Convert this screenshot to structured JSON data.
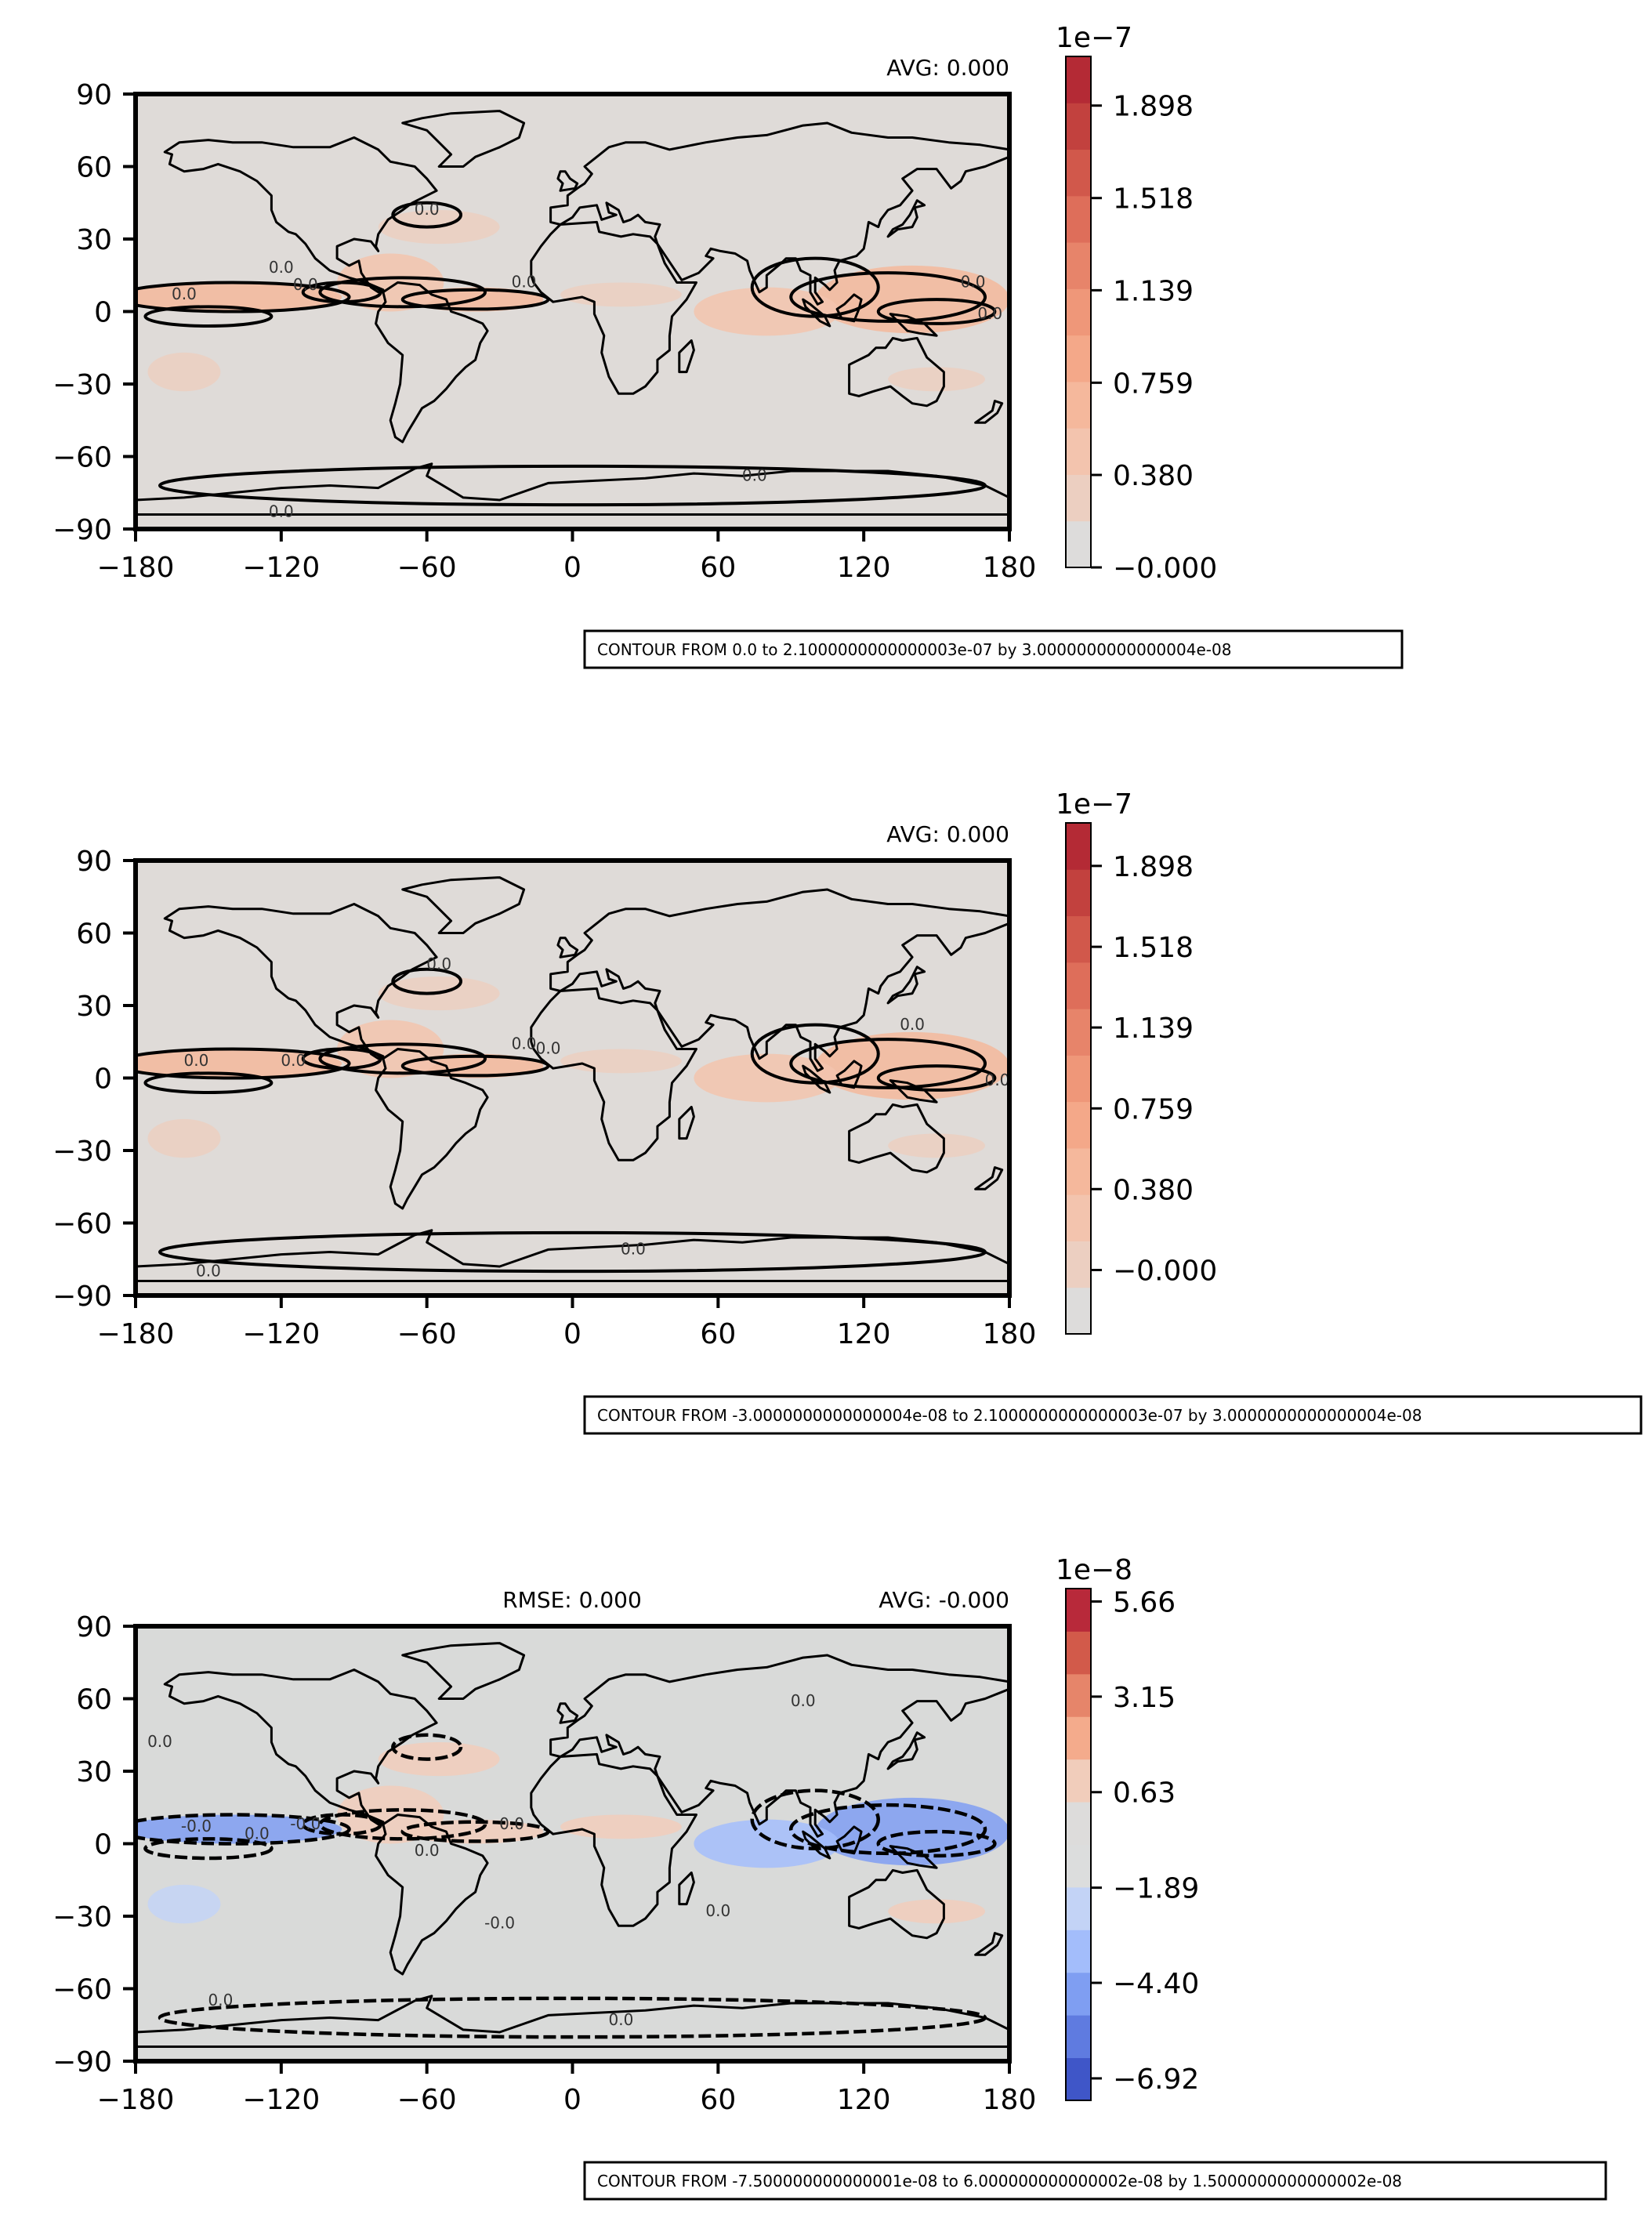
{
  "chart_data": [
    {
      "type": "heatmap",
      "panel": "top",
      "annotations": {
        "rmse": "",
        "avg": "AVG: 0.000"
      },
      "xticks": [
        "−180",
        "−120",
        "−60",
        "0",
        "60",
        "120",
        "180"
      ],
      "yticks": [
        "90",
        "60",
        "30",
        "0",
        "−30",
        "−60",
        "−90"
      ],
      "xlim": [
        -180,
        180
      ],
      "ylim": [
        -90,
        90
      ],
      "colorbar": {
        "exponent": "1e−7",
        "range": [
          0,
          2.1e-07
        ],
        "ticks": [
          "−0.000",
          "0.380",
          "0.759",
          "1.139",
          "1.518",
          "1.898"
        ],
        "colors": [
          "#dddcdb",
          "#eccfc1",
          "#f3c4ae",
          "#f5b89c",
          "#f4a889",
          "#ef9779",
          "#e7846a",
          "#de6e5a",
          "#d1584b",
          "#c2413e",
          "#b42a35"
        ]
      },
      "caption": "CONTOUR FROM 0.0 to 2.1000000000000003e-07 by 3.0000000000000004e-08",
      "contour_labels": [
        "0.0",
        "0.0",
        "0.0",
        "0.0",
        "0.0",
        "0.0",
        "0.0",
        "0.0",
        "0.0"
      ]
    },
    {
      "type": "heatmap",
      "panel": "middle",
      "annotations": {
        "rmse": "",
        "avg": "AVG: 0.000"
      },
      "xticks": [
        "−180",
        "−120",
        "−60",
        "0",
        "60",
        "120",
        "180"
      ],
      "yticks": [
        "90",
        "60",
        "30",
        "0",
        "−30",
        "−60",
        "−90"
      ],
      "xlim": [
        -180,
        180
      ],
      "ylim": [
        -90,
        90
      ],
      "colorbar": {
        "exponent": "1e−7",
        "range": [
          -3e-08,
          2.1e-07
        ],
        "ticks": [
          "−0.000",
          "0.380",
          "0.759",
          "1.139",
          "1.518",
          "1.898"
        ],
        "colors": [
          "#dddcdb",
          "#eccfc1",
          "#f3c4ae",
          "#f5b89c",
          "#f4a889",
          "#ef9779",
          "#e7846a",
          "#de6e5a",
          "#d1584b",
          "#c2413e",
          "#b42a35"
        ]
      },
      "caption": "CONTOUR FROM -3.0000000000000004e-08 to 2.1000000000000003e-07 by 3.0000000000000004e-08",
      "contour_labels": [
        "0.0",
        "0.0",
        "0.0",
        "0.0",
        "0.0",
        "0.0",
        "0.0",
        "0.0",
        "0.0"
      ]
    },
    {
      "type": "heatmap",
      "panel": "bottom",
      "annotations": {
        "rmse": "RMSE: 0.000",
        "avg": "AVG: -0.000"
      },
      "xticks": [
        "−180",
        "−120",
        "−60",
        "0",
        "60",
        "120",
        "180"
      ],
      "yticks": [
        "90",
        "60",
        "30",
        "0",
        "−30",
        "−60",
        "−90"
      ],
      "xlim": [
        -180,
        180
      ],
      "ylim": [
        -90,
        90
      ],
      "colorbar": {
        "exponent": "1e−8",
        "range": [
          -7.5e-08,
          6e-08
        ],
        "ticks": [
          "−6.92",
          "−4.40",
          "−1.89",
          "0.63",
          "3.15",
          "5.66"
        ],
        "colors": [
          "#3f56c8",
          "#5f7be0",
          "#7f9ef2",
          "#a3bdfb",
          "#c3d3f6",
          "#dcdddd",
          "#dddcdb",
          "#f1cdbb",
          "#f4ab8c",
          "#e6856a",
          "#d25a4a",
          "#b8293a"
        ]
      },
      "caption": "CONTOUR FROM -7.500000000000001e-08 to 6.000000000000002e-08 by 1.5000000000000002e-08",
      "contour_labels": [
        "0.0",
        "-0.0",
        "0.0",
        "-0.0",
        "0.0",
        "0.0",
        "0.0",
        "0.0",
        "0.0",
        "-0.0",
        "0.0",
        "0.0"
      ]
    }
  ]
}
